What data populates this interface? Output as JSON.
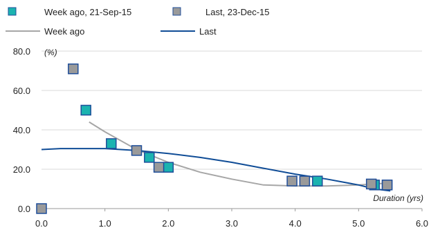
{
  "chart_data": {
    "type": "scatter",
    "y_unit_label": "(%)",
    "xlabel": "Duration (yrs)",
    "xlim": [
      0,
      6
    ],
    "ylim": [
      0,
      80
    ],
    "x_ticks": [
      "0.0",
      "1.0",
      "2.0",
      "3.0",
      "4.0",
      "5.0",
      "6.0"
    ],
    "y_ticks": [
      "0.0",
      "20.0",
      "40.0",
      "60.0",
      "80.0"
    ],
    "grid": "horizontal",
    "legend_position": "top",
    "legend": {
      "week_ago_points": "Week ago, 21-Sep-15",
      "last_points": "Last, 23-Dec-15",
      "week_ago_line": "Week ago",
      "last_line": "Last"
    },
    "colors": {
      "week_ago_points": "#1bb3b0",
      "last_points": "#9a9a9a",
      "marker_border": "#1f4e9a",
      "week_ago_line": "#a6a6a6",
      "last_line": "#0f4c96",
      "grid": "#d9d9d9",
      "axis": "#999999"
    },
    "series": [
      {
        "name": "Week ago, 21-Sep-15",
        "kind": "points",
        "points": [
          [
            0.7,
            50
          ],
          [
            1.1,
            33
          ],
          [
            1.7,
            26
          ],
          [
            2.0,
            21
          ],
          [
            4.35,
            14
          ],
          [
            5.25,
            12
          ],
          [
            5.45,
            12
          ]
        ]
      },
      {
        "name": "Last, 23-Dec-15",
        "kind": "points",
        "points": [
          [
            0.0,
            0
          ],
          [
            0.5,
            71
          ],
          [
            1.5,
            29.5
          ],
          [
            1.85,
            21
          ],
          [
            3.95,
            14
          ],
          [
            4.15,
            14
          ],
          [
            5.2,
            12.5
          ],
          [
            5.45,
            12
          ]
        ]
      },
      {
        "name": "Week ago",
        "kind": "line",
        "points": [
          [
            0.75,
            44
          ],
          [
            1.0,
            39
          ],
          [
            1.5,
            30
          ],
          [
            2.0,
            23.5
          ],
          [
            2.5,
            18.5
          ],
          [
            3.0,
            15
          ],
          [
            3.5,
            12
          ],
          [
            4.0,
            11.5
          ],
          [
            4.5,
            11.5
          ],
          [
            5.0,
            12
          ],
          [
            5.5,
            13
          ]
        ]
      },
      {
        "name": "Last",
        "kind": "line",
        "points": [
          [
            0.0,
            30
          ],
          [
            0.3,
            30.5
          ],
          [
            1.0,
            30.5
          ],
          [
            1.5,
            29.5
          ],
          [
            2.0,
            28
          ],
          [
            2.5,
            26
          ],
          [
            3.0,
            23.5
          ],
          [
            3.5,
            20.5
          ],
          [
            4.0,
            17.5
          ],
          [
            4.5,
            15
          ],
          [
            5.0,
            12
          ],
          [
            5.25,
            10
          ],
          [
            5.5,
            9
          ]
        ]
      }
    ]
  }
}
